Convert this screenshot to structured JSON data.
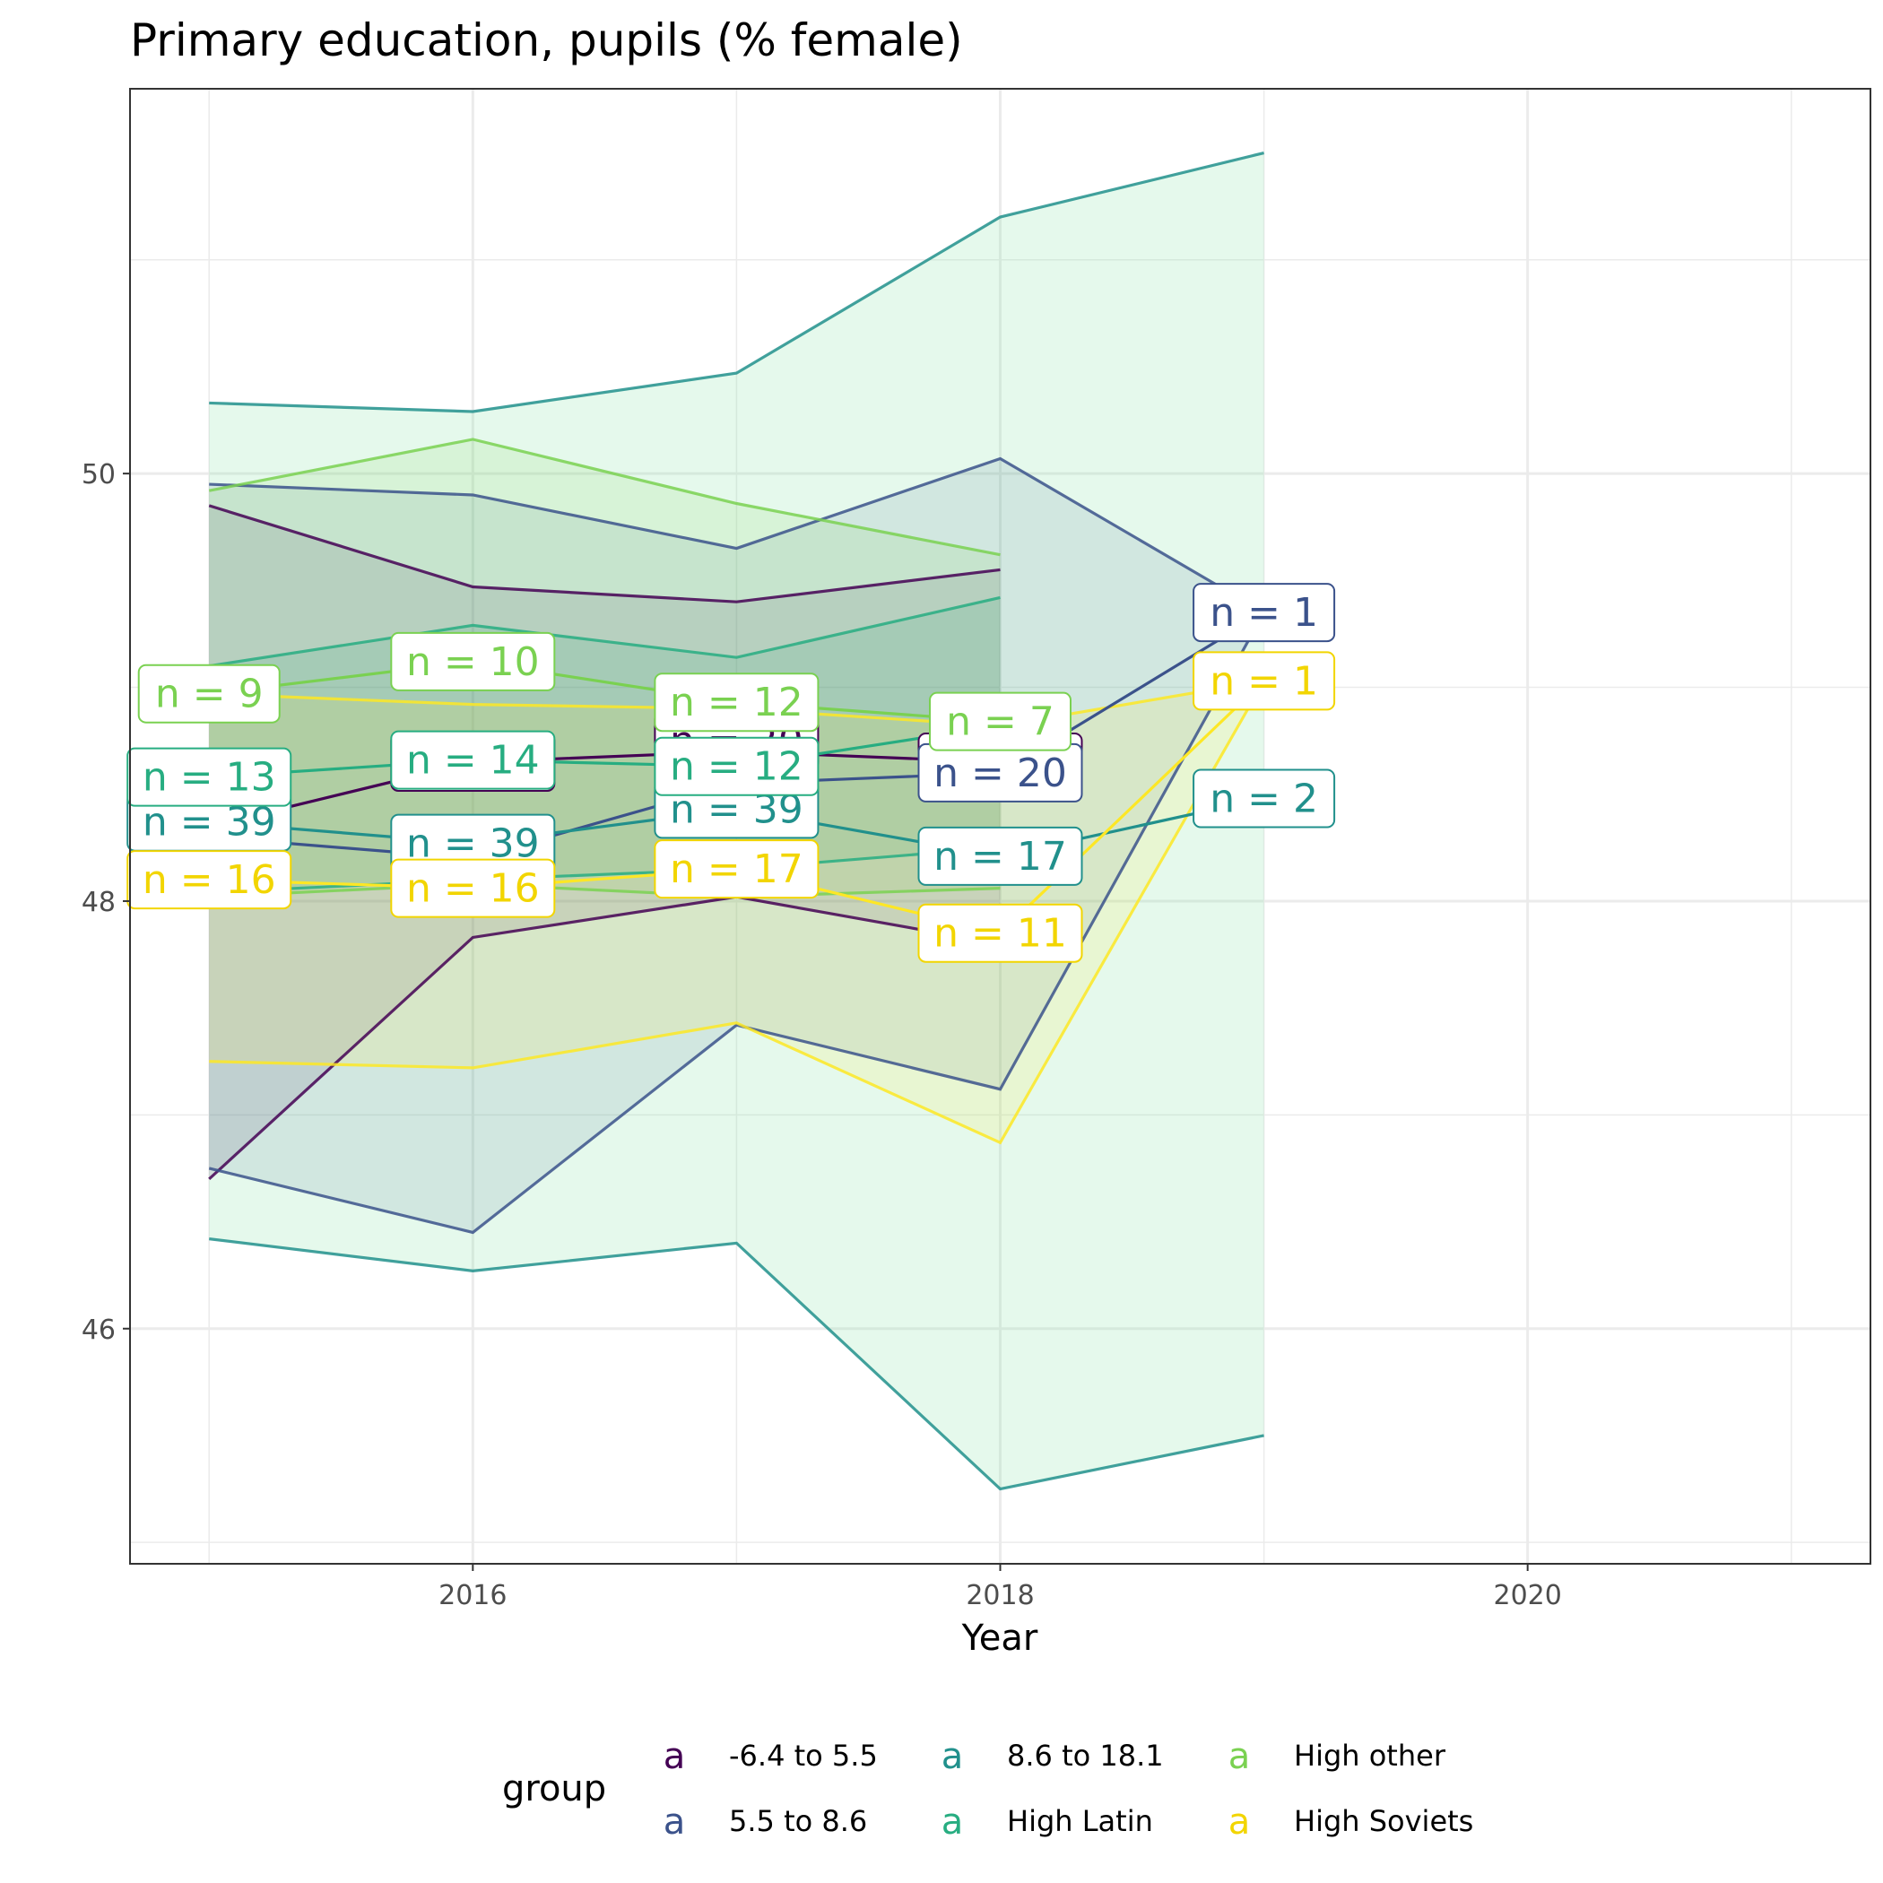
{
  "chart_data": {
    "type": "line",
    "title": "Primary education, pupils (% female)",
    "xlabel": "Year",
    "ylabel": "",
    "xlim": [
      2014.7,
      2021.3
    ],
    "ylim": [
      44.9,
      51.8
    ],
    "x_ticks": [
      2016,
      2018,
      2020
    ],
    "y_ticks": [
      46,
      48,
      50
    ],
    "grid": true,
    "legend": {
      "title": "group",
      "position": "bottom",
      "key_glyph": "a"
    },
    "series": [
      {
        "name": "-6.4 to 5.5",
        "color": "#440154",
        "x": [
          2015,
          2016,
          2017,
          2018
        ],
        "mean": [
          48.35,
          48.65,
          48.7,
          48.65
        ],
        "min": [
          46.7,
          47.83,
          48.02,
          47.8
        ],
        "max": [
          49.85,
          49.47,
          49.4,
          49.55
        ],
        "labels": [
          {
            "x": 2015,
            "y": 48.35,
            "text": ""
          },
          {
            "x": 2016,
            "y": 48.65,
            "text": "n = 20"
          },
          {
            "x": 2017,
            "y": 48.75,
            "text": "n = 20"
          },
          {
            "x": 2018,
            "y": 48.65,
            "text": "n = 20"
          }
        ]
      },
      {
        "name": "5.5 to 8.6",
        "color": "#3B528B",
        "x": [
          2015,
          2016,
          2017,
          2018,
          2019
        ],
        "mean": [
          48.3,
          48.2,
          48.55,
          48.6,
          49.35
        ],
        "min": [
          46.75,
          46.45,
          47.42,
          47.12,
          49.35
        ],
        "max": [
          49.95,
          49.9,
          49.65,
          50.07,
          49.35
        ],
        "labels": [
          {
            "x": 2015,
            "y": 48.3,
            "text": ""
          },
          {
            "x": 2016,
            "y": 48.2,
            "text": ""
          },
          {
            "x": 2017,
            "y": 48.55,
            "text": ""
          },
          {
            "x": 2018,
            "y": 48.6,
            "text": "n = 20"
          },
          {
            "x": 2019,
            "y": 49.35,
            "text": "n = 1"
          }
        ]
      },
      {
        "name": "8.6 to 18.1",
        "color": "#21908C",
        "x": [
          2015,
          2016,
          2017,
          2018,
          2019
        ],
        "mean": [
          48.37,
          48.27,
          48.43,
          48.21,
          48.48
        ],
        "min": [
          46.42,
          46.27,
          46.4,
          45.25,
          45.5
        ],
        "max": [
          50.33,
          50.29,
          50.47,
          51.2,
          51.5
        ],
        "labels": [
          {
            "x": 2015,
            "y": 48.37,
            "text": "n = 39"
          },
          {
            "x": 2016,
            "y": 48.27,
            "text": "n = 39"
          },
          {
            "x": 2017,
            "y": 48.43,
            "text": "n = 39"
          },
          {
            "x": 2018,
            "y": 48.21,
            "text": "n = 17"
          },
          {
            "x": 2019,
            "y": 48.48,
            "text": "n = 2"
          }
        ]
      },
      {
        "name": "High Latin",
        "color": "#27AD81",
        "x": [
          2015,
          2016,
          2017,
          2018
        ],
        "mean": [
          48.58,
          48.66,
          48.63,
          48.82
        ],
        "min": [
          48.04,
          48.1,
          48.15,
          48.25
        ],
        "max": [
          49.1,
          49.29,
          49.14,
          49.42
        ],
        "labels": [
          {
            "x": 2015,
            "y": 48.58,
            "text": "n = 13"
          },
          {
            "x": 2016,
            "y": 48.66,
            "text": "n = 14"
          },
          {
            "x": 2017,
            "y": 48.63,
            "text": "n = 12"
          },
          {
            "x": 2018,
            "y": 48.82,
            "text": ""
          }
        ]
      },
      {
        "name": "High other",
        "color": "#7AD151",
        "x": [
          2015,
          2016,
          2017,
          2018
        ],
        "mean": [
          48.97,
          49.12,
          48.93,
          48.84
        ],
        "min": [
          48.02,
          48.08,
          48.02,
          48.06
        ],
        "max": [
          49.92,
          50.16,
          49.86,
          49.62
        ],
        "labels": [
          {
            "x": 2015,
            "y": 48.97,
            "text": "n = 9"
          },
          {
            "x": 2016,
            "y": 49.12,
            "text": "n = 10"
          },
          {
            "x": 2017,
            "y": 48.93,
            "text": "n = 12"
          },
          {
            "x": 2018,
            "y": 48.84,
            "text": "n = 7"
          }
        ]
      },
      {
        "name": "High Soviets",
        "color": "#FDE725",
        "x": [
          2015,
          2016,
          2017,
          2018,
          2019
        ],
        "mean": [
          48.1,
          48.06,
          48.15,
          47.85,
          49.03
        ],
        "min": [
          47.25,
          47.22,
          47.43,
          46.87,
          49.03
        ],
        "max": [
          48.97,
          48.92,
          48.9,
          48.82,
          49.03
        ],
        "labels": [
          {
            "x": 2015,
            "y": 48.1,
            "text": "n = 16"
          },
          {
            "x": 2016,
            "y": 48.06,
            "text": "n = 16"
          },
          {
            "x": 2017,
            "y": 48.15,
            "text": "n = 17"
          },
          {
            "x": 2018,
            "y": 47.85,
            "text": "n = 11"
          },
          {
            "x": 2019,
            "y": 49.03,
            "text": "n = 1"
          }
        ]
      }
    ]
  }
}
